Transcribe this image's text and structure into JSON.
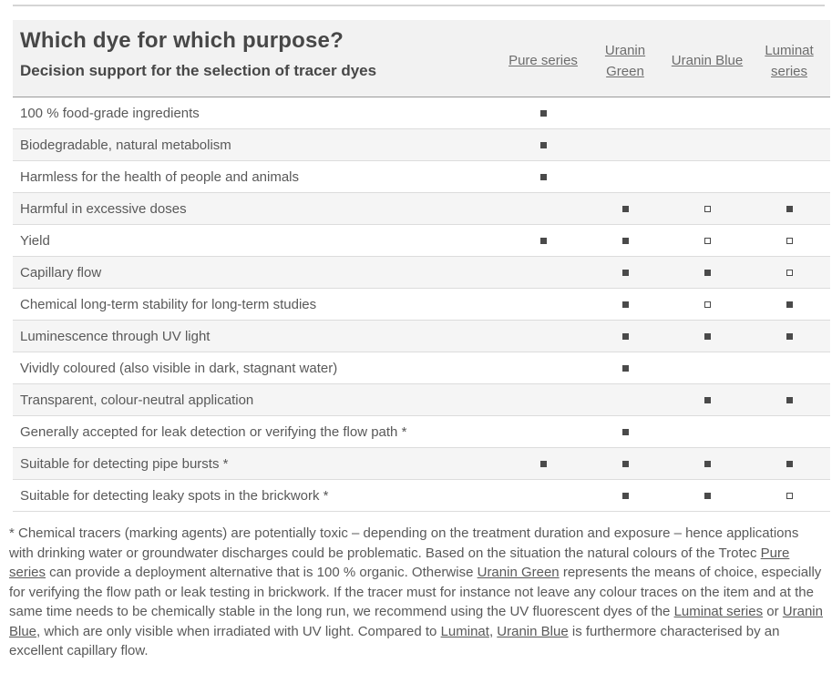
{
  "header": {
    "title": "Which dye for which purpose?",
    "subtitle": "Decision support for the selection of tracer dyes"
  },
  "table": {
    "columns": [
      {
        "label": "Pure series"
      },
      {
        "label": "Uranin Green"
      },
      {
        "label": "Uranin Blue"
      },
      {
        "label": "Luminat series"
      }
    ],
    "rows": [
      {
        "label": "100 % food-grade ingredients",
        "marks": [
          "filled",
          null,
          null,
          null
        ]
      },
      {
        "label": "Biodegradable, natural metabolism",
        "marks": [
          "filled",
          null,
          null,
          null
        ]
      },
      {
        "label": "Harmless for the health of people and animals",
        "marks": [
          "filled",
          null,
          null,
          null
        ]
      },
      {
        "label": "Harmful in excessive doses",
        "marks": [
          null,
          "filled",
          "open",
          "filled"
        ]
      },
      {
        "label": "Yield",
        "marks": [
          "filled",
          "filled",
          "open",
          "open"
        ]
      },
      {
        "label": "Capillary flow",
        "marks": [
          null,
          "filled",
          "filled",
          "open"
        ]
      },
      {
        "label": "Chemical long-term stability for long-term studies",
        "marks": [
          null,
          "filled",
          "open",
          "filled"
        ]
      },
      {
        "label": "Luminescence through UV light",
        "marks": [
          null,
          "filled",
          "filled",
          "filled"
        ]
      },
      {
        "label": "Vividly coloured (also visible in dark, stagnant water)",
        "marks": [
          null,
          "filled",
          null,
          null
        ]
      },
      {
        "label": "Transparent, colour-neutral application",
        "marks": [
          null,
          null,
          "filled",
          "filled"
        ]
      },
      {
        "label": "Generally accepted for leak detection or verifying the flow path *",
        "marks": [
          null,
          "filled",
          null,
          null
        ]
      },
      {
        "label": "Suitable for detecting pipe bursts *",
        "marks": [
          "filled",
          "filled",
          "filled",
          "filled"
        ]
      },
      {
        "label": "Suitable for detecting leaky spots in the brickwork *",
        "marks": [
          null,
          "filled",
          "filled",
          "open"
        ]
      }
    ]
  },
  "markers": {
    "filled_glyph": "■",
    "open_glyph": "□"
  },
  "footnote": {
    "segments": [
      {
        "text": " * Chemical tracers (marking agents) are potentially toxic – depending on the treatment duration and exposure – hence applications with drinking water or groundwater discharges could be problematic. Based on the situation the natural colours of the Trotec ",
        "link": false
      },
      {
        "text": "Pure series",
        "link": true
      },
      {
        "text": " can provide a deployment alternative that is 100 % organic. Otherwise ",
        "link": false
      },
      {
        "text": "Uranin Green",
        "link": true
      },
      {
        "text": " represents the means of choice, especially for verifying the flow path or leak testing in brickwork. If the tracer must for instance not leave any colour traces on the item and at the same time needs to be chemically stable in the long run, we recommend using the UV fluorescent dyes of the ",
        "link": false
      },
      {
        "text": "Luminat series",
        "link": true
      },
      {
        "text": " or ",
        "link": false
      },
      {
        "text": "Uranin Blue",
        "link": true
      },
      {
        "text": ", which are only visible when irradiated with UV light. Compared to ",
        "link": false
      },
      {
        "text": "Luminat",
        "link": true
      },
      {
        "text": ", ",
        "link": false
      },
      {
        "text": "Uranin Blue",
        "link": true
      },
      {
        "text": " is furthermore characterised by an excellent capillary flow.",
        "link": false
      }
    ]
  },
  "colors": {
    "title_text": "#474747",
    "body_text": "#595959",
    "link_text": "#6d6d6d",
    "header_band_bg": "#f2f2f2",
    "stripe_row_bg": "#f5f5f5",
    "row_border": "#dcdcdc",
    "header_border": "#9a9a9a",
    "top_rule": "#d5d5d5",
    "marker": "#4a4a4a"
  }
}
